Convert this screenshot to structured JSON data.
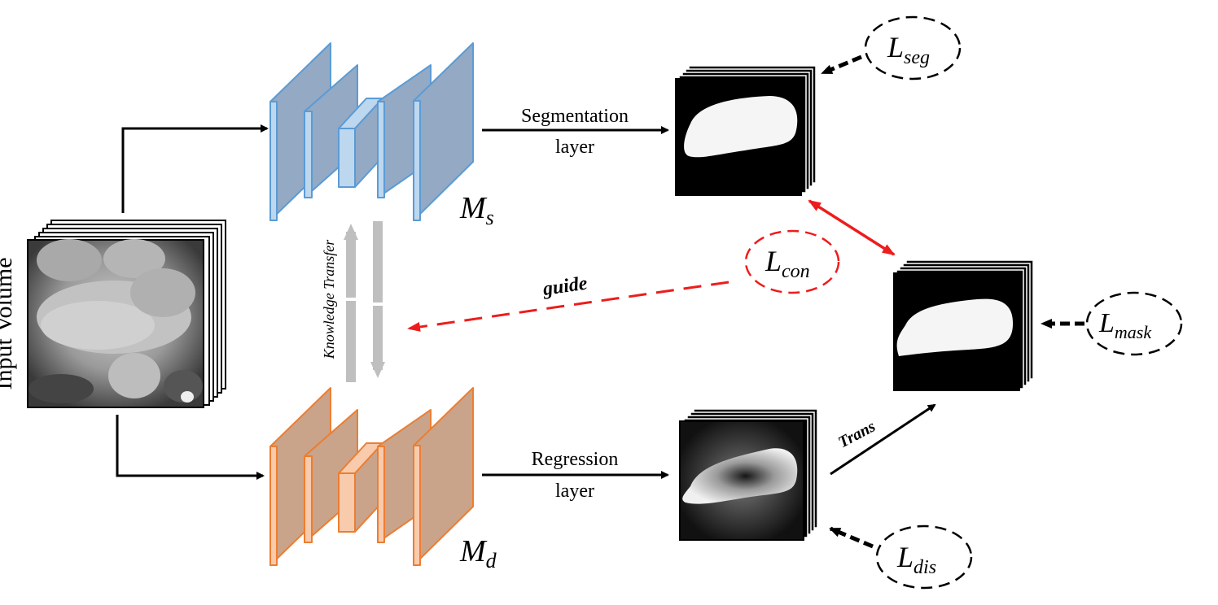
{
  "input_label": "Input Volume",
  "segmentation_label_line1": "Segmentation",
  "segmentation_label_line2": "layer",
  "regression_label_line1": "Regression",
  "regression_label_line2": "layer",
  "knowledge_transfer_label": "Knowledge Transfer",
  "guide_label": "guide",
  "trans_label": "Trans",
  "model_s": {
    "main": "M",
    "sub": "s"
  },
  "model_d": {
    "main": "M",
    "sub": "d"
  },
  "losses": {
    "seg": {
      "main": "L",
      "sub": "seg"
    },
    "con": {
      "main": "L",
      "sub": "con"
    },
    "mask": {
      "main": "L",
      "sub": "mask"
    },
    "dis": {
      "main": "L",
      "sub": "dis"
    }
  },
  "colors": {
    "blue_fill": "#93a9c4",
    "blue_light": "#bdd7ee",
    "blue_stroke": "#5b9bd5",
    "orange_fill": "#c9a48a",
    "orange_light": "#f8cbad",
    "orange_stroke": "#ed7d31",
    "red": "#ee1c1c",
    "gray": "#bfbfbf"
  }
}
